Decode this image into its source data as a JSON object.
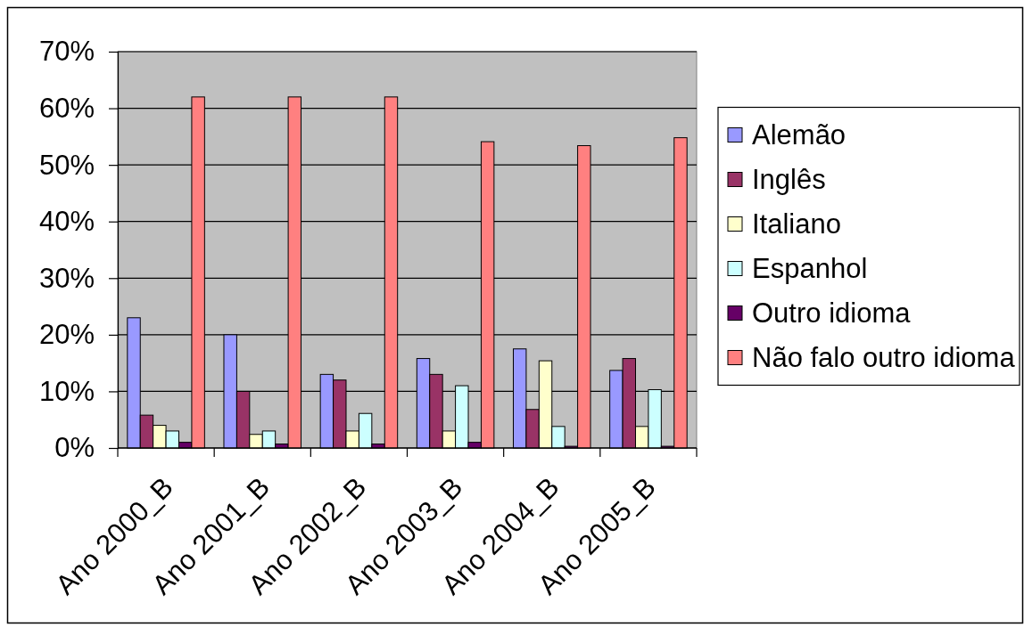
{
  "chart_data": {
    "type": "bar",
    "categories": [
      "Ano 2000_B",
      "Ano 2001_B",
      "Ano 2002_B",
      "Ano 2003_B",
      "Ano 2004_B",
      "Ano 2005_B"
    ],
    "series": [
      {
        "name": "Alemão",
        "color": "#9999ff",
        "values": [
          23,
          20,
          13,
          15.8,
          17.5,
          13.7
        ]
      },
      {
        "name": "Inglês",
        "color": "#993366",
        "values": [
          5.8,
          10,
          12,
          13,
          6.8,
          15.8
        ]
      },
      {
        "name": "Italiano",
        "color": "#ffffcc",
        "values": [
          4,
          2.4,
          3,
          3,
          15.4,
          3.8
        ]
      },
      {
        "name": "Espanhol",
        "color": "#ccffff",
        "values": [
          3,
          3,
          6.1,
          11,
          3.8,
          10.3
        ]
      },
      {
        "name": "Outro idioma",
        "color": "#660066",
        "values": [
          1,
          0.7,
          0.7,
          1,
          0.3,
          0.3
        ]
      },
      {
        "name": "Não falo outro idioma",
        "color": "#ff8080",
        "values": [
          62,
          62,
          62,
          54.1,
          53.4,
          54.8
        ]
      }
    ],
    "ylim": [
      0,
      70
    ],
    "yticks": [
      {
        "value": 0,
        "label": "0%"
      },
      {
        "value": 10,
        "label": "10%"
      },
      {
        "value": 20,
        "label": "20%"
      },
      {
        "value": 30,
        "label": "30%"
      },
      {
        "value": 40,
        "label": "40%"
      },
      {
        "value": 50,
        "label": "50%"
      },
      {
        "value": 60,
        "label": "60%"
      },
      {
        "value": 70,
        "label": "70%"
      }
    ],
    "grid": "y",
    "legend": "right"
  }
}
